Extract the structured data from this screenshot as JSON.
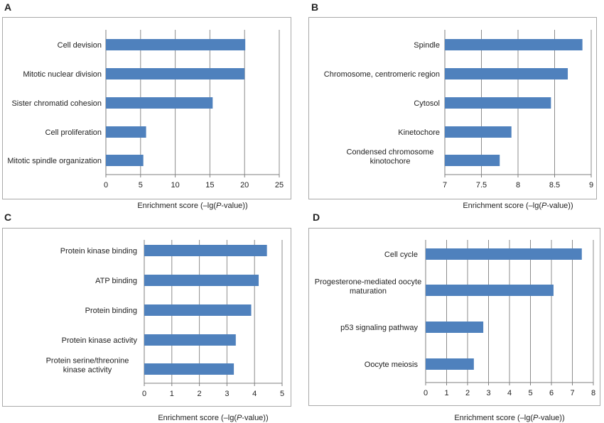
{
  "colors": {
    "bar": "#4f81bd",
    "gridline": "#8c8c8c",
    "axis": "#7f7f7f",
    "border": "#a9a9a9"
  },
  "chart_data": [
    {
      "panel": "A",
      "type": "bar",
      "orientation": "horizontal",
      "categories": [
        "Cell devision",
        "Mitotic nuclear division",
        "Sister chromatid cohesion",
        "Cell proliferation",
        "Mitotic spindle organization"
      ],
      "values": [
        20.1,
        20.0,
        15.4,
        5.8,
        5.4
      ],
      "xlim": [
        0,
        25
      ],
      "xticks": [
        "0",
        "5",
        "10",
        "15",
        "20",
        "25"
      ],
      "xlabel_parts": [
        "Enrichment score (–lg(",
        "P",
        "-value))"
      ],
      "grid": true
    },
    {
      "panel": "B",
      "type": "bar",
      "orientation": "horizontal",
      "categories": [
        "Spindle",
        "Chromosome, centromeric region",
        "Cytosol",
        "Kinetochore",
        "Condensed chromosome kinotochore"
      ],
      "values": [
        8.88,
        8.68,
        8.45,
        7.91,
        7.75
      ],
      "xlim": [
        7,
        9
      ],
      "xticks": [
        "7",
        "7.5",
        "8",
        "8.5",
        "9"
      ],
      "xlabel_parts": [
        "Enrichment score (–lg(",
        "P",
        "-value))"
      ],
      "grid": true
    },
    {
      "panel": "C",
      "type": "bar",
      "orientation": "horizontal",
      "categories": [
        "Protein kinase binding",
        "ATP binding",
        "Protein binding",
        "Protein kinase activity",
        "Protein serine/threonine kinase activity"
      ],
      "values": [
        4.45,
        4.15,
        3.88,
        3.32,
        3.25
      ],
      "xlim": [
        0,
        5
      ],
      "xticks": [
        "0",
        "1",
        "2",
        "3",
        "4",
        "5"
      ],
      "xlabel_parts": [
        "Enrichment score (–lg(",
        "P",
        "-value))"
      ],
      "grid": true
    },
    {
      "panel": "D",
      "type": "bar",
      "orientation": "horizontal",
      "categories": [
        "Cell cycle",
        "Progesterone-mediated oocyte maturation",
        "p53 signaling pathway",
        "Oocyte meiosis"
      ],
      "values": [
        7.45,
        6.1,
        2.75,
        2.3
      ],
      "xlim": [
        0,
        8
      ],
      "xticks": [
        "0",
        "1",
        "2",
        "3",
        "4",
        "5",
        "6",
        "7",
        "8"
      ],
      "xlabel_parts": [
        "Enrichment score (–lg(",
        "P",
        "-value))"
      ],
      "grid": true
    }
  ]
}
